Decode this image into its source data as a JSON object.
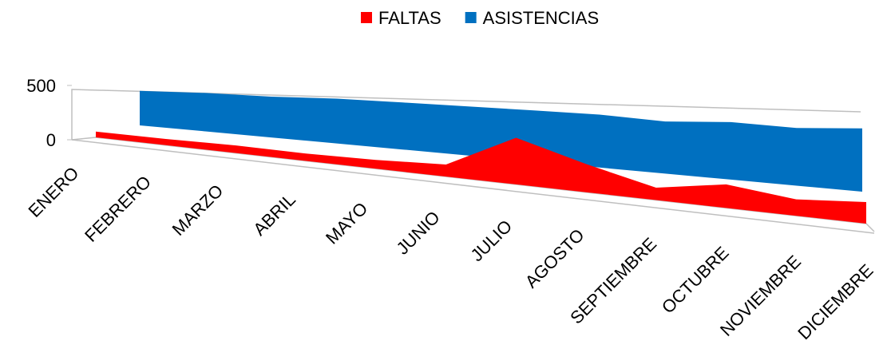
{
  "chart_data": {
    "type": "area3d",
    "categories": [
      "ENERO",
      "FEBRERO",
      "MARZO",
      "ABRIL",
      "MAYO",
      "JUNIO",
      "JULIO",
      "AGOSTO",
      "SEPTIEMBRE",
      "OCTUBRE",
      "NOVIEMBRE",
      "DICIEMBRE"
    ],
    "series": [
      {
        "name": "FALTAS",
        "color": "#ff0000",
        "values": [
          80,
          80,
          90,
          80,
          90,
          115,
          420,
          240,
          100,
          180,
          120,
          150
        ]
      },
      {
        "name": "ASISTENCIAS",
        "color": "#0070c0",
        "values": [
          480,
          490,
          480,
          490,
          480,
          470,
          460,
          450,
          420,
          440,
          420,
          440
        ]
      }
    ],
    "ylim": [
      0,
      500
    ],
    "yticks": [
      0,
      500
    ],
    "legend": "top"
  }
}
